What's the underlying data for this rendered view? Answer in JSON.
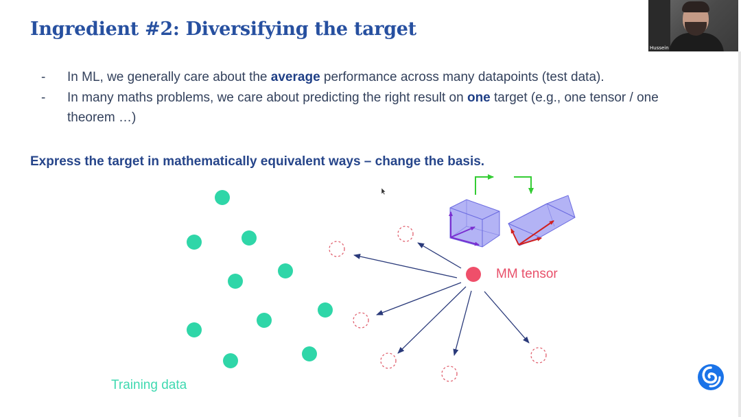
{
  "slide": {
    "title": "Ingredient #2: Diversifying the target",
    "bullets": [
      {
        "dash": "-",
        "before": "In ML, we generally care about the ",
        "bold": "average",
        "after": " performance across many datapoints (test data)."
      },
      {
        "dash": "-",
        "before": "In many maths problems, we care about predicting the right result on ",
        "bold": "one",
        "after": " target (e.g., one tensor / one theorem  …)"
      }
    ],
    "emphasis": "Express the target in mathematically equivalent ways – change the basis."
  },
  "diagram": {
    "training_label": "Training data",
    "target_label": "MM tensor",
    "colors": {
      "training": "#2fd6a8",
      "target": "#ef4f6a",
      "candidate": "#e0606e",
      "arrow": "#2a3a7a",
      "label_training": "#3fd9b0",
      "label_target": "#e8506a",
      "cube_fill": "#8e8ef0",
      "green_arrow": "#33cc33"
    },
    "icons": [
      "cube-basis-icon",
      "rotated-prism-icon",
      "green-arrow-icon"
    ]
  },
  "video": {
    "participant_name": "Hussein"
  },
  "logo": {
    "icon": "deepmind-logo-icon",
    "color": "#1a73e8"
  }
}
